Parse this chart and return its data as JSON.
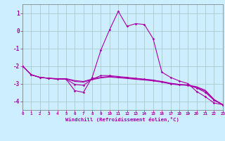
{
  "xlabel": "Windchill (Refroidissement éolien,°C)",
  "bg_color": "#cceeff",
  "grid_color": "#aacccc",
  "line_color": "#aa00aa",
  "xlim": [
    0,
    23
  ],
  "ylim": [
    -4.5,
    1.5
  ],
  "yticks": [
    -4,
    -3,
    -2,
    -1,
    0,
    1
  ],
  "xticks": [
    0,
    1,
    2,
    3,
    4,
    5,
    6,
    7,
    8,
    9,
    10,
    11,
    12,
    13,
    14,
    15,
    16,
    17,
    18,
    19,
    20,
    21,
    22,
    23
  ],
  "line1_x": [
    0,
    1,
    2,
    3,
    4,
    5,
    6,
    7,
    8,
    9,
    10,
    11,
    12,
    13,
    14,
    15,
    16,
    17,
    18,
    19,
    20,
    21,
    22,
    23
  ],
  "line1_y": [
    -2.0,
    -2.5,
    -2.65,
    -2.7,
    -2.75,
    -2.75,
    -3.4,
    -3.5,
    -2.65,
    -1.1,
    0.05,
    1.1,
    0.25,
    0.4,
    0.35,
    -0.45,
    -2.35,
    -2.65,
    -2.85,
    -3.0,
    -3.45,
    -3.75,
    -4.1,
    -4.2
  ],
  "line2_x": [
    0,
    1,
    2,
    3,
    4,
    5,
    6,
    7,
    8,
    9,
    10,
    11,
    12,
    13,
    14,
    15,
    16,
    17,
    18,
    19,
    20,
    21,
    22,
    23
  ],
  "line2_y": [
    -2.0,
    -2.5,
    -2.65,
    -2.7,
    -2.75,
    -2.75,
    -3.05,
    -3.1,
    -2.75,
    -2.55,
    -2.55,
    -2.6,
    -2.65,
    -2.7,
    -2.75,
    -2.8,
    -2.9,
    -3.0,
    -3.05,
    -3.1,
    -3.25,
    -3.5,
    -3.95,
    -4.2
  ],
  "line3_x": [
    0,
    1,
    2,
    3,
    4,
    5,
    6,
    7,
    8,
    9,
    10,
    11,
    12,
    13,
    14,
    15,
    16,
    17,
    18,
    19,
    20,
    21,
    22,
    23
  ],
  "line3_y": [
    -2.0,
    -2.5,
    -2.65,
    -2.7,
    -2.73,
    -2.73,
    -2.88,
    -2.92,
    -2.78,
    -2.68,
    -2.63,
    -2.67,
    -2.71,
    -2.76,
    -2.8,
    -2.85,
    -2.92,
    -3.02,
    -3.08,
    -3.1,
    -3.22,
    -3.43,
    -3.92,
    -4.2
  ],
  "line4_x": [
    0,
    1,
    2,
    3,
    4,
    5,
    6,
    7,
    8,
    9,
    10,
    11,
    12,
    13,
    14,
    15,
    16,
    17,
    18,
    19,
    20,
    21,
    22,
    23
  ],
  "line4_y": [
    -2.0,
    -2.5,
    -2.65,
    -2.7,
    -2.72,
    -2.72,
    -2.83,
    -2.88,
    -2.74,
    -2.65,
    -2.6,
    -2.64,
    -2.68,
    -2.73,
    -2.77,
    -2.82,
    -2.88,
    -2.98,
    -3.05,
    -3.08,
    -3.18,
    -3.38,
    -3.9,
    -4.2
  ]
}
